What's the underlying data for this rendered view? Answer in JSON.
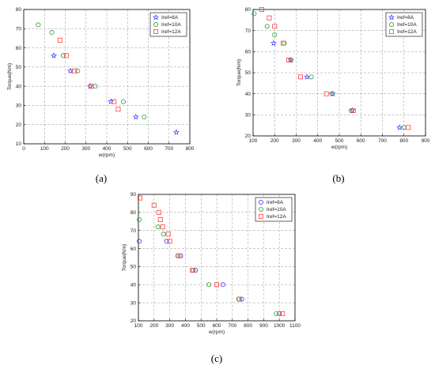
{
  "figure": {
    "colors": {
      "Iref=8A": "#3a3aff",
      "Iref=10A": "#2ca02c",
      "Iref=12A": "#ff4040"
    }
  },
  "chart_data": [
    {
      "type": "scatter",
      "caption": "(a)",
      "xlabel": "w(rpm)",
      "ylabel": "Torque(Nm)",
      "xlim": [
        0,
        800
      ],
      "ylim": [
        10,
        80
      ],
      "xticks": [
        0,
        100,
        200,
        300,
        400,
        500,
        600,
        700,
        800
      ],
      "yticks": [
        10,
        20,
        30,
        40,
        50,
        60,
        70,
        80
      ],
      "grid": true,
      "legend": "top-right",
      "series": [
        {
          "name": "Iref=8A",
          "marker": "star",
          "points": [
            [
              145,
              56
            ],
            [
              225,
              48
            ],
            [
              320,
              40
            ],
            [
              420,
              32
            ],
            [
              540,
              24
            ],
            [
              735,
              16
            ]
          ]
        },
        {
          "name": "Iref=10A",
          "marker": "circle",
          "points": [
            [
              70,
              72
            ],
            [
              135,
              68
            ],
            [
              190,
              56
            ],
            [
              260,
              48
            ],
            [
              345,
              40
            ],
            [
              480,
              32
            ],
            [
              580,
              24
            ]
          ]
        },
        {
          "name": "Iref=12A",
          "marker": "square",
          "points": [
            [
              175,
              64
            ],
            [
              205,
              56
            ],
            [
              245,
              48
            ],
            [
              325,
              40
            ],
            [
              435,
              32
            ],
            [
              455,
              28
            ]
          ]
        }
      ]
    },
    {
      "type": "scatter",
      "caption": "(b)",
      "xlabel": "w(rpm)",
      "ylabel": "Torque(Nm)",
      "xlim": [
        100,
        900
      ],
      "ylim": [
        20,
        80
      ],
      "xticks": [
        100,
        200,
        300,
        400,
        500,
        600,
        700,
        800,
        900
      ],
      "yticks": [
        20,
        30,
        40,
        50,
        60,
        70,
        80
      ],
      "grid": true,
      "legend": "top-right",
      "series": [
        {
          "name": "Iref=8A",
          "marker": "star",
          "points": [
            [
              195,
              64
            ],
            [
              275,
              56
            ],
            [
              350,
              48
            ],
            [
              470,
              40
            ],
            [
              560,
              32
            ],
            [
              780,
              24
            ]
          ]
        },
        {
          "name": "Iref=10A",
          "marker": "circle",
          "points": [
            [
              105,
              78
            ],
            [
              165,
              72
            ],
            [
              200,
              68
            ],
            [
              245,
              64
            ],
            [
              275,
              56
            ],
            [
              370,
              48
            ],
            [
              465,
              40
            ],
            [
              555,
              32
            ],
            [
              800,
              24
            ]
          ]
        },
        {
          "name": "Iref=12A",
          "marker": "square",
          "points": [
            [
              140,
              80
            ],
            [
              175,
              76
            ],
            [
              200,
              72
            ],
            [
              240,
              64
            ],
            [
              265,
              56
            ],
            [
              320,
              48
            ],
            [
              440,
              40
            ],
            [
              565,
              32
            ],
            [
              820,
              24
            ]
          ]
        }
      ]
    },
    {
      "type": "scatter",
      "caption": "(c)",
      "xlabel": "w(rpm)",
      "ylabel": "Torque(Nm)",
      "xlim": [
        100,
        1100
      ],
      "ylim": [
        20,
        90
      ],
      "xticks": [
        100,
        200,
        300,
        400,
        500,
        600,
        700,
        800,
        900,
        1000,
        1100
      ],
      "yticks": [
        20,
        30,
        40,
        50,
        60,
        70,
        80,
        90
      ],
      "grid": true,
      "legend": "top-right",
      "series": [
        {
          "name": "Iref=8A",
          "marker": "circle",
          "points": [
            [
              105,
              64
            ],
            [
              280,
              64
            ],
            [
              370,
              56
            ],
            [
              465,
              48
            ],
            [
              640,
              40
            ],
            [
              760,
              32
            ],
            [
              1000,
              24
            ]
          ]
        },
        {
          "name": "Iref=10A",
          "marker": "circle",
          "points": [
            [
              105,
              76
            ],
            [
              225,
              72
            ],
            [
              260,
              68
            ],
            [
              350,
              56
            ],
            [
              450,
              48
            ],
            [
              550,
              40
            ],
            [
              740,
              32
            ],
            [
              980,
              24
            ]
          ]
        },
        {
          "name": "Iref=12A",
          "marker": "square",
          "points": [
            [
              110,
              88
            ],
            [
              200,
              84
            ],
            [
              230,
              80
            ],
            [
              240,
              76
            ],
            [
              255,
              72
            ],
            [
              290,
              68
            ],
            [
              300,
              64
            ],
            [
              360,
              56
            ],
            [
              445,
              48
            ],
            [
              600,
              40
            ],
            [
              745,
              32
            ],
            [
              1020,
              24
            ]
          ]
        }
      ]
    }
  ]
}
